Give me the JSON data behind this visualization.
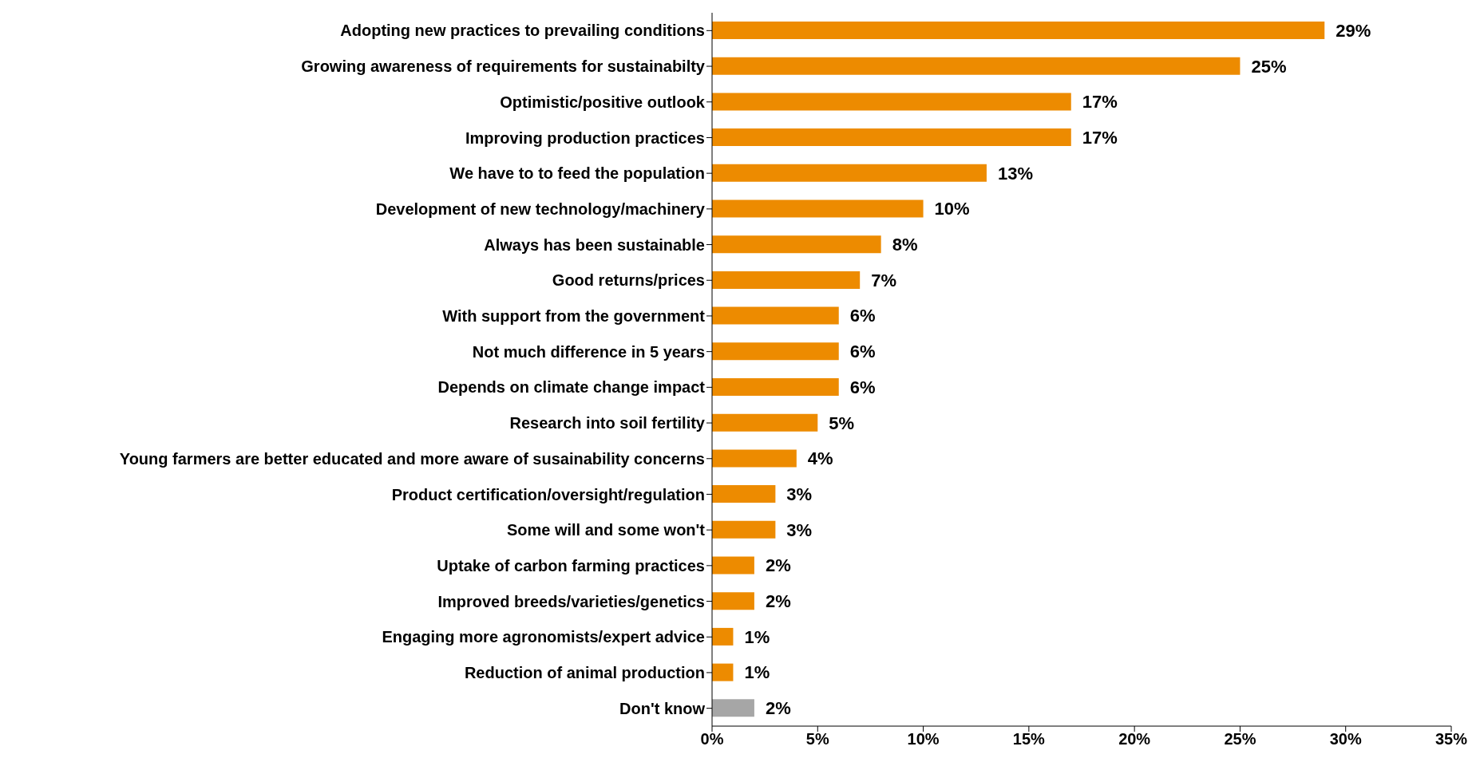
{
  "chart_data": {
    "type": "bar",
    "orientation": "horizontal",
    "categories": [
      "Adopting new practices to prevailing conditions",
      "Growing awareness of requirements for sustainabilty",
      "Optimistic/positive outlook",
      "Improving production practices",
      "We have to to feed the population",
      "Development of new technology/machinery",
      "Always has been sustainable",
      "Good returns/prices",
      "With support from the government",
      "Not much difference in 5 years",
      "Depends on climate change impact",
      "Research into soil fertility",
      "Young farmers are better educated and more aware of susainability concerns",
      "Product certification/oversight/regulation",
      "Some will and some won't",
      "Uptake of carbon farming practices",
      "Improved breeds/varieties/genetics",
      "Engaging more agronomists/expert advice",
      "Reduction of animal production",
      "Don't know"
    ],
    "values": [
      29,
      25,
      17,
      17,
      13,
      10,
      8,
      7,
      6,
      6,
      6,
      5,
      4,
      3,
      3,
      2,
      2,
      1,
      1,
      2
    ],
    "value_labels": [
      "29%",
      "25%",
      "17%",
      "17%",
      "13%",
      "10%",
      "8%",
      "7%",
      "6%",
      "6%",
      "6%",
      "5%",
      "4%",
      "3%",
      "3%",
      "2%",
      "2%",
      "1%",
      "1%",
      "2%"
    ],
    "colors": [
      "#ed8b00",
      "#ed8b00",
      "#ed8b00",
      "#ed8b00",
      "#ed8b00",
      "#ed8b00",
      "#ed8b00",
      "#ed8b00",
      "#ed8b00",
      "#ed8b00",
      "#ed8b00",
      "#ed8b00",
      "#ed8b00",
      "#ed8b00",
      "#ed8b00",
      "#ed8b00",
      "#ed8b00",
      "#ed8b00",
      "#ed8b00",
      "#a6a6a6"
    ],
    "xlim": [
      0,
      35
    ],
    "xticks": [
      {
        "value": 0,
        "label": "0%"
      },
      {
        "value": 5,
        "label": "5%"
      },
      {
        "value": 10,
        "label": "10%"
      },
      {
        "value": 15,
        "label": "15%"
      },
      {
        "value": 20,
        "label": "20%"
      },
      {
        "value": 25,
        "label": "25%"
      },
      {
        "value": 30,
        "label": "30%"
      },
      {
        "value": 35,
        "label": "35%"
      }
    ],
    "grid": false,
    "legend": false
  }
}
